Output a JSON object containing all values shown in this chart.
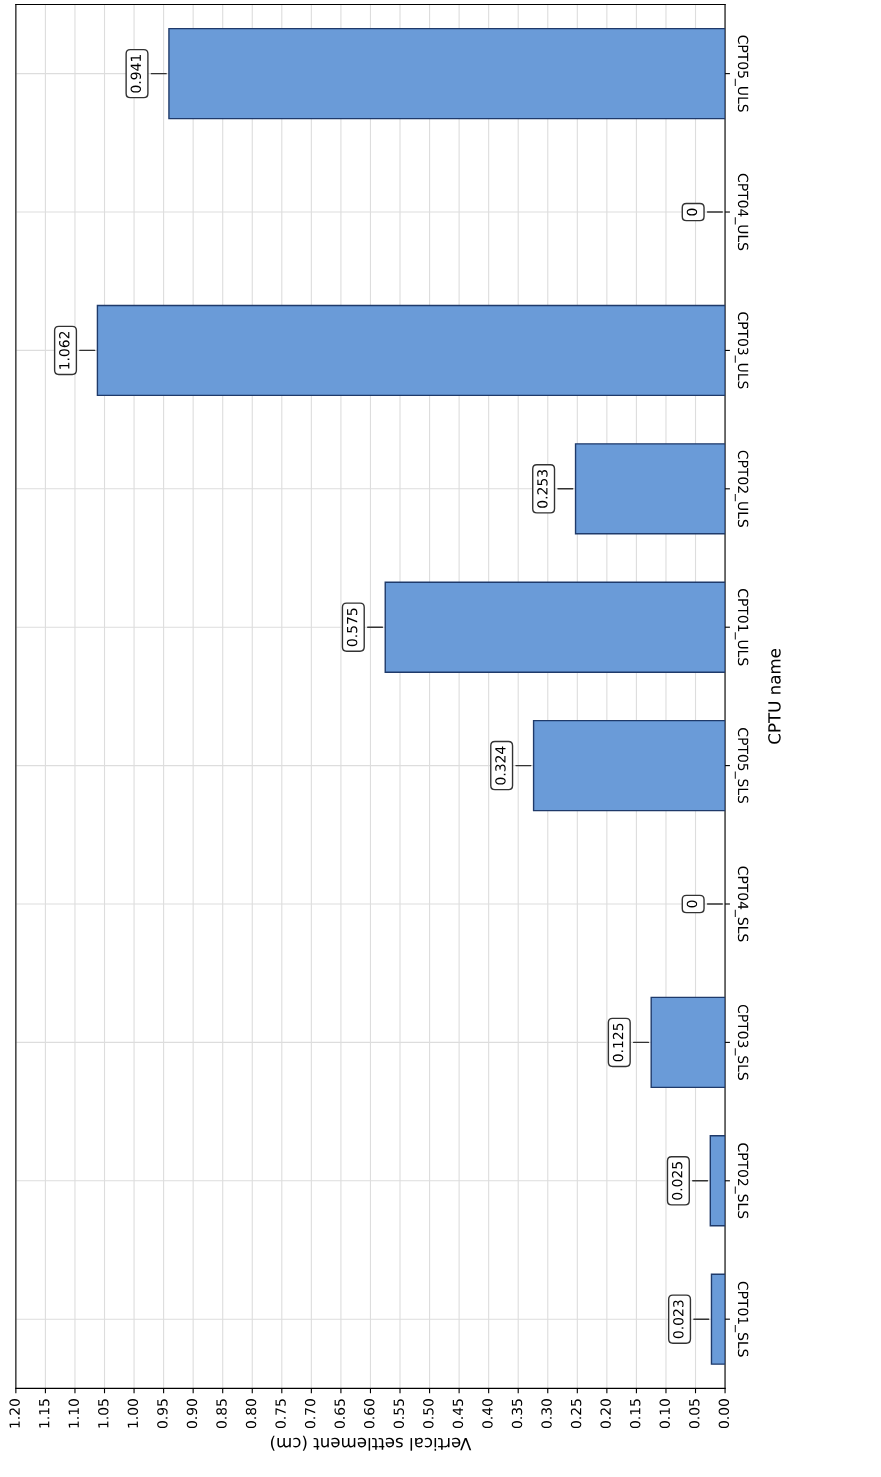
{
  "chart_data": {
    "type": "bar",
    "orientation": "horizontal",
    "xlabel": "Vertical settlement (cm)",
    "ylabel": "CPTU name",
    "categories": [
      "CPT05_ULS",
      "CPT04_ULS",
      "CPT03_ULS",
      "CPT02_ULS",
      "CPT01_ULS",
      "CPT05_SLS",
      "CPT04_SLS",
      "CPT03_SLS",
      "CPT02_SLS",
      "CPT01_SLS"
    ],
    "values": [
      0.941,
      0,
      1.062,
      0.253,
      0.575,
      0.324,
      0,
      0.125,
      0.025,
      0.023
    ],
    "color": "#6a9bd8",
    "data_labels": true,
    "grid": true,
    "xlim": [
      1.2,
      0
    ],
    "xticks": [
      {
        "value": 1.2,
        "label": "1.20"
      },
      {
        "value": 1.15,
        "label": "1.15"
      },
      {
        "value": 1.1,
        "label": "1.10"
      },
      {
        "value": 1.05,
        "label": "1.05"
      },
      {
        "value": 1.0,
        "label": "1.00"
      },
      {
        "value": 0.95,
        "label": "0.95"
      },
      {
        "value": 0.9,
        "label": "0.90"
      },
      {
        "value": 0.85,
        "label": "0.85"
      },
      {
        "value": 0.8,
        "label": "0.80"
      },
      {
        "value": 0.75,
        "label": "0.75"
      },
      {
        "value": 0.7,
        "label": "0.70"
      },
      {
        "value": 0.65,
        "label": "0.65"
      },
      {
        "value": 0.6,
        "label": "0.60"
      },
      {
        "value": 0.55,
        "label": "0.55"
      },
      {
        "value": 0.5,
        "label": "0.50"
      },
      {
        "value": 0.45,
        "label": "0.45"
      },
      {
        "value": 0.4,
        "label": "0.40"
      },
      {
        "value": 0.35,
        "label": "0.35"
      },
      {
        "value": 0.3,
        "label": "0.30"
      },
      {
        "value": 0.25,
        "label": "0.25"
      },
      {
        "value": 0.2,
        "label": "0.20"
      },
      {
        "value": 0.15,
        "label": "0.15"
      },
      {
        "value": 0.1,
        "label": "0.10"
      },
      {
        "value": 0.05,
        "label": "0.05"
      },
      {
        "value": 0,
        "label": "0.00"
      }
    ]
  }
}
